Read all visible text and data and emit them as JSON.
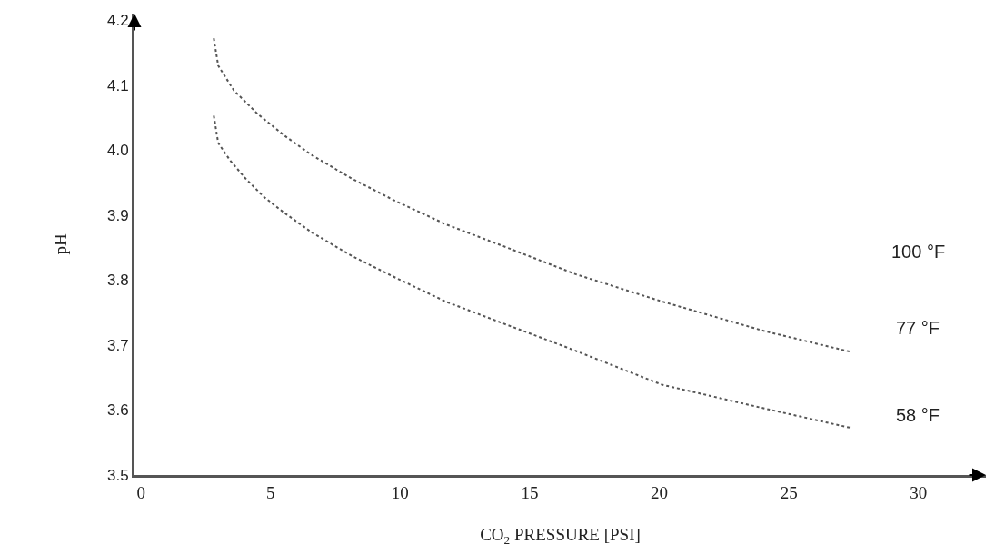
{
  "chart_data": {
    "type": "line",
    "xlabel": "CO$_{2}$ PRESSURE [PSI]",
    "ylabel": "pH",
    "xlim": [
      -0.25,
      32.6
    ],
    "ylim": [
      3.5,
      4.21
    ],
    "xticks": [
      0,
      5,
      10,
      15,
      20,
      25,
      30
    ],
    "yticks": [
      {
        "value": 3.5,
        "label": "3.5"
      },
      {
        "value": 3.6,
        "label": "3.6"
      },
      {
        "value": 3.7,
        "label": "3.7"
      },
      {
        "value": 3.8,
        "label": "3.8"
      },
      {
        "value": 3.9,
        "label": "3.9"
      },
      {
        "value": 4.0,
        "label": "4.0"
      },
      {
        "value": 4.1,
        "label": "4.1"
      },
      {
        "value": 4.2,
        "label": "4.2"
      }
    ],
    "marker": "none",
    "line_style": "dotted",
    "series": [
      {
        "color": "#555555",
        "x": [
          2.81,
          2.98,
          3.58,
          4.49,
          5.51,
          6.6,
          8.14,
          9.75,
          11.75,
          13.86,
          16.77,
          20.1,
          24.1,
          27.44
        ],
        "values": [
          4.172,
          4.13,
          4.092,
          4.056,
          4.023,
          3.992,
          3.956,
          3.923,
          3.886,
          3.854,
          3.809,
          3.767,
          3.721,
          3.689
        ]
      },
      {
        "color": "#555555",
        "x": [
          2.81,
          2.98,
          3.44,
          4.04,
          4.74,
          5.51,
          6.6,
          8.14,
          9.75,
          11.75,
          13.86,
          16.39,
          20.1,
          24.1,
          27.44
        ],
        "values": [
          4.053,
          4.011,
          3.984,
          3.956,
          3.928,
          3.904,
          3.873,
          3.837,
          3.805,
          3.767,
          3.735,
          3.697,
          3.639,
          3.602,
          3.572
        ]
      }
    ],
    "annotations": [
      "100 °F",
      "77 °F",
      "58 °F"
    ]
  }
}
